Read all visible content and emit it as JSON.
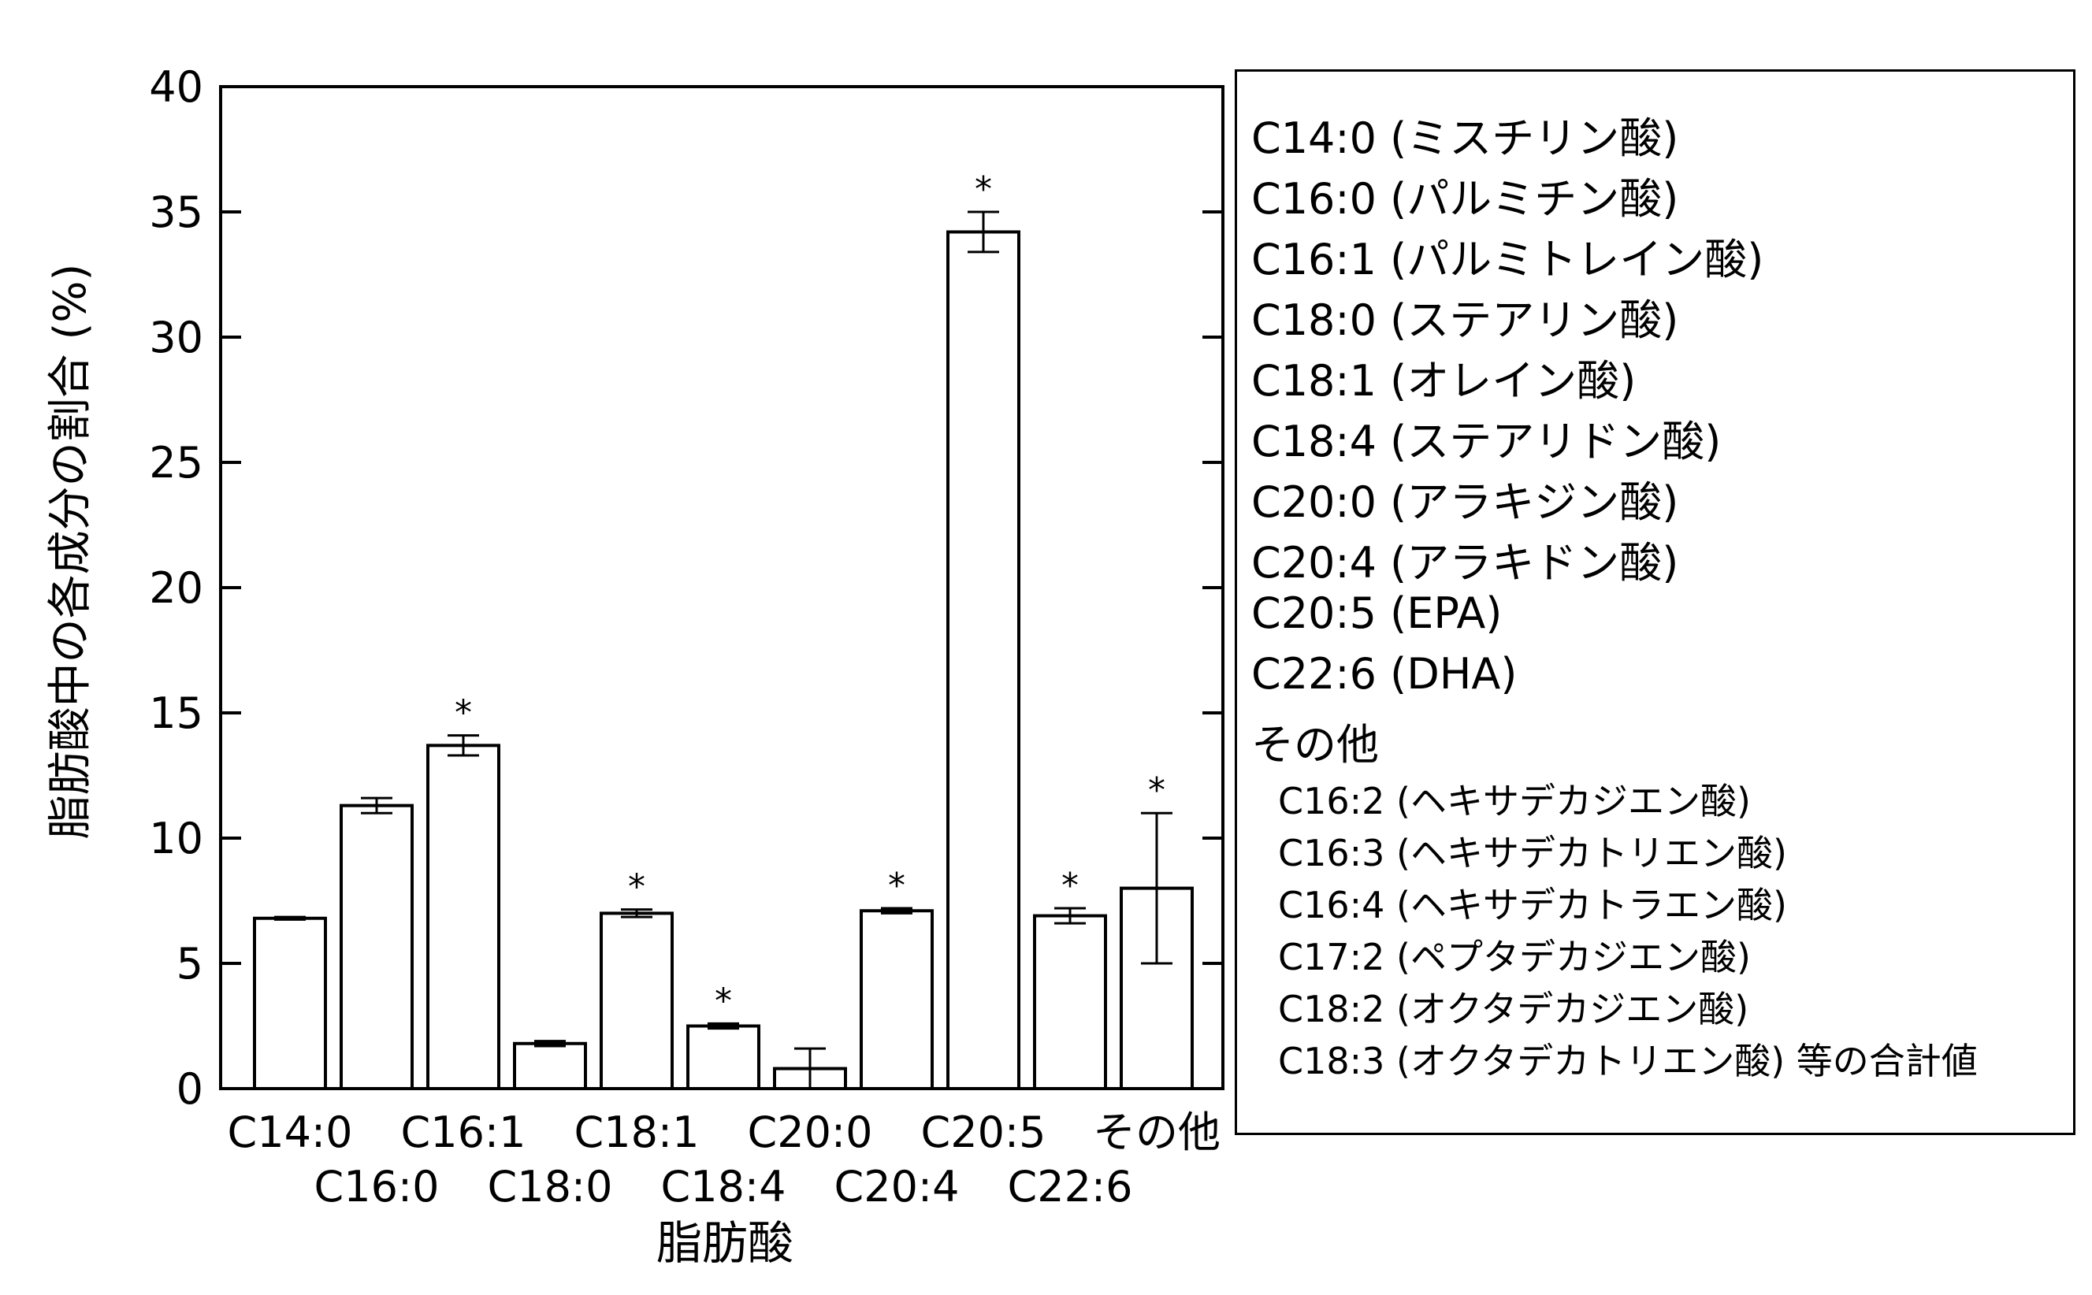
{
  "chart_data": {
    "type": "bar",
    "categories": [
      "C14:0",
      "C16:0",
      "C16:1",
      "C18:0",
      "C18:1",
      "C18:4",
      "C20:0",
      "C20:4",
      "C20:5",
      "C22:6",
      "その他"
    ],
    "values": [
      6.8,
      11.3,
      13.7,
      1.8,
      7.0,
      2.5,
      0.8,
      7.1,
      34.2,
      6.9,
      8.0
    ],
    "errors": [
      0.05,
      0.3,
      0.4,
      0.1,
      0.15,
      0.1,
      0.8,
      0.1,
      0.8,
      0.3,
      3.0
    ],
    "significant": [
      false,
      false,
      true,
      false,
      true,
      true,
      false,
      true,
      true,
      true,
      true
    ],
    "significance_mark": "*",
    "xlabel": "脂肪酸",
    "ylabel": "脂肪酸中の各成分の割合 (%)",
    "ylim": [
      0,
      40
    ],
    "yticks": [
      "0",
      "5",
      "10",
      "15",
      "20",
      "25",
      "30",
      "35",
      "40"
    ],
    "grid": false,
    "bar_color": "#ffffff",
    "edge_color": "#000000"
  },
  "legend": {
    "placement": "right",
    "items": [
      "C14:0 (ミスチリン酸)",
      "C16:0 (パルミチン酸)",
      "C16:1 (パルミトレイン酸)",
      "C18:0 (ステアリン酸)",
      "C18:1 (オレイン酸)",
      "C18:4 (ステアリドン酸)",
      "C20:0 (アラキジン酸)",
      "C20:4 (アラキドン酸)",
      "C20:5 (EPA)",
      "C22:6 (DHA)",
      "その他"
    ],
    "sub_items": [
      "C16:2 (ヘキサデカジエン酸)",
      "C16:3 (ヘキサデカトリエン酸)",
      "C16:4 (ヘキサデカトラエン酸)",
      "C17:2 (ペプタデカジエン酸)",
      "C18:2 (オクタデカジエン酸)",
      "C18:3 (オクタデカトリエン酸) 等の合計値"
    ]
  }
}
